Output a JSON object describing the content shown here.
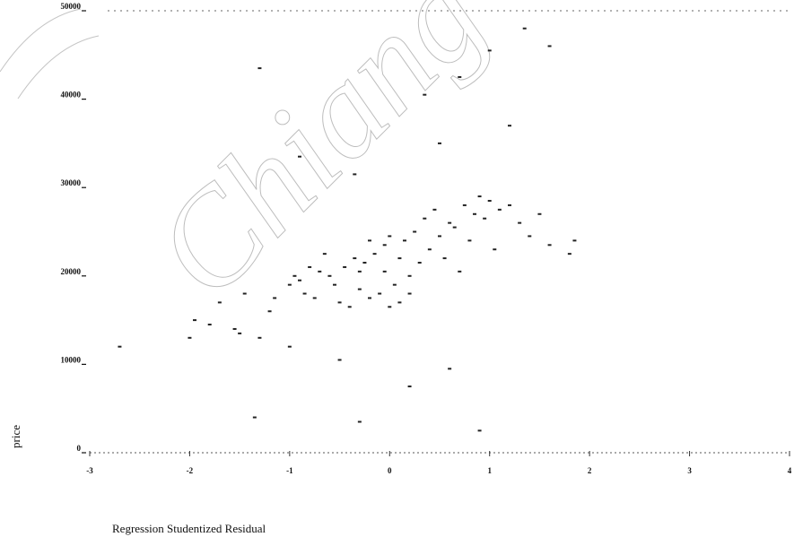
{
  "chart_data": {
    "type": "scatter",
    "title": "",
    "xlabel": "Regression Studentized Residual",
    "ylabel": "price",
    "xlim": [
      -3,
      4
    ],
    "ylim": [
      0,
      50000
    ],
    "x_ticks": [
      "-3",
      "-2",
      "-1",
      "0",
      "1",
      "2",
      "3",
      "4"
    ],
    "y_ticks": [
      "0",
      "10000",
      "20000",
      "30000",
      "40000",
      "50000"
    ],
    "grid": false,
    "legend": "none",
    "point_color": "#222222",
    "watermark": "Chiang",
    "series": [
      {
        "x": [
          -2.7,
          -2.0,
          -1.95,
          -1.8,
          -1.7,
          -1.55,
          -1.5,
          -1.45,
          -1.3,
          -1.2,
          -1.15,
          -1.0,
          -1.0,
          -0.95,
          -0.9,
          -0.85,
          -0.8,
          -0.75,
          -0.7,
          -0.65,
          -0.6,
          -0.55,
          -0.5,
          -0.45,
          -0.4,
          -0.35,
          -0.3,
          -0.3,
          -0.25,
          -0.2,
          -0.2,
          -0.15,
          -0.1,
          -0.05,
          -0.05,
          0.0,
          0.0,
          0.05,
          0.1,
          0.1,
          0.15,
          0.2,
          0.2,
          0.25,
          0.3,
          0.35,
          0.4,
          0.45,
          0.5,
          0.55,
          0.6,
          0.65,
          0.7,
          0.75,
          0.8,
          0.85,
          0.9,
          0.95,
          1.0,
          1.05,
          1.1,
          1.2,
          1.3,
          1.4,
          1.5,
          1.6,
          1.8,
          1.85,
          -1.3,
          -0.9,
          -0.35,
          0.35,
          0.5,
          0.7,
          1.0,
          1.2,
          1.35,
          1.6,
          -0.5,
          0.6,
          -1.35,
          -0.3,
          0.9,
          0.2
        ],
        "y": [
          12000,
          13000,
          15000,
          14500,
          17000,
          14000,
          13500,
          18000,
          13000,
          16000,
          17500,
          19000,
          12000,
          20000,
          19500,
          18000,
          21000,
          17500,
          20500,
          22500,
          20000,
          19000,
          17000,
          21000,
          16500,
          22000,
          20500,
          18500,
          21500,
          17500,
          24000,
          22500,
          18000,
          20500,
          23500,
          16500,
          24500,
          19000,
          17000,
          22000,
          24000,
          18000,
          20000,
          25000,
          21500,
          26500,
          23000,
          27500,
          24500,
          22000,
          26000,
          25500,
          20500,
          28000,
          24000,
          27000,
          29000,
          26500,
          28500,
          23000,
          27500,
          28000,
          26000,
          24500,
          27000,
          23500,
          22500,
          24000,
          43500,
          33500,
          31500,
          40500,
          35000,
          42500,
          45500,
          37000,
          48000,
          46000,
          10500,
          9500,
          4000,
          3500,
          2500,
          7500
        ]
      }
    ]
  }
}
